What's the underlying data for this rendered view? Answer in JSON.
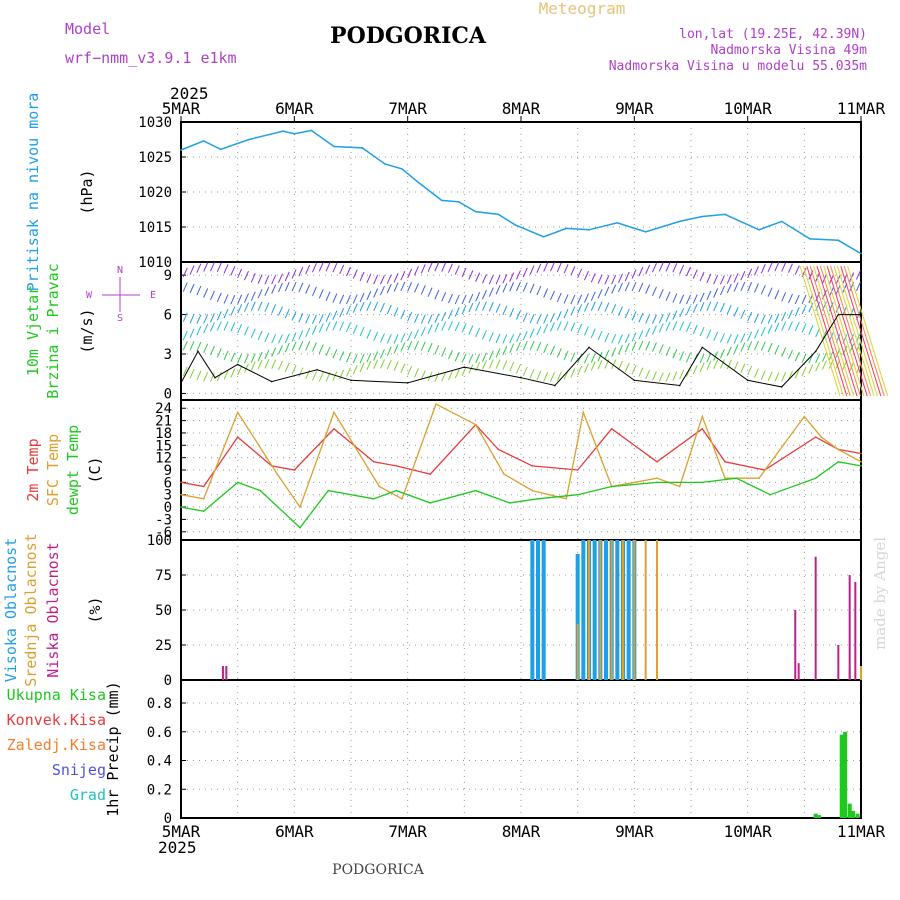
{
  "header": {
    "station": "PODGORICA",
    "meteogram": "Meteogram",
    "model_label": "Model",
    "model_name": "wrf−nmm_v3.9.1  e1km",
    "lonlat": "lon,lat (19.25E, 42.39N)",
    "elevation": "Nadmorska Visina 49m",
    "model_elevation": "Nadmorska Visina u modelu 55.035m",
    "year": "2025",
    "footer_station": "PODGORICA",
    "credit": "made by Angel"
  },
  "colors": {
    "pressure": "#1e9fe6",
    "temp2m": "#e83c3c",
    "sfc": "#dca030",
    "dewpt": "#1ec81e",
    "high_cloud": "#1e9fe6",
    "mid_cloud": "#dca030",
    "low_cloud": "#c01e8c",
    "precip": "#1ec81e",
    "purple": "#b040c8"
  },
  "chart_data": [
    {
      "type": "line",
      "panel": "pressure",
      "ylabel_lines": [
        "Pritisak na nivou mora",
        "(hPa)"
      ],
      "x_ticks": [
        "5MAR",
        "6MAR",
        "7MAR",
        "8MAR",
        "9MAR",
        "10MAR",
        "11MAR"
      ],
      "ylim": [
        1010,
        1030
      ],
      "y_ticks": [
        "1010",
        "1015",
        "1020",
        "1025",
        "1030"
      ],
      "grid": true,
      "series": [
        {
          "x": [
            0,
            0.2,
            0.35,
            0.6,
            0.9,
            1.0,
            1.15,
            1.35,
            1.6,
            1.8,
            1.95,
            2.1,
            2.3,
            2.45,
            2.6,
            2.8,
            2.95,
            3.2,
            3.4,
            3.6,
            3.85,
            4.1,
            4.4,
            4.6,
            4.8,
            5.1,
            5.3,
            5.55,
            5.8,
            6.0
          ],
          "y": [
            1026,
            1027.3,
            1026.1,
            1027.5,
            1028.7,
            1028.3,
            1028.8,
            1026.5,
            1026.3,
            1024,
            1023.3,
            1021.3,
            1018.8,
            1018.6,
            1017.2,
            1016.8,
            1015.3,
            1013.6,
            1014.8,
            1014.6,
            1015.6,
            1014.3,
            1015.8,
            1016.5,
            1016.8,
            1014.6,
            1015.8,
            1013.3,
            1013.1,
            1011.2
          ]
        }
      ]
    },
    {
      "type": "line",
      "panel": "wind",
      "ylabel_lines": [
        "10m Vjetar",
        "Brzina i Pravac",
        "(m/s)"
      ],
      "compass": {
        "n": "N",
        "s": "S",
        "e": "E",
        "w": "W"
      },
      "ylim": [
        -0.5,
        10
      ],
      "y_ticks": [
        "0",
        "3",
        "6",
        "9"
      ],
      "grid": true,
      "series": [
        {
          "name": "wind speed",
          "x": [
            0,
            0.15,
            0.3,
            0.5,
            0.8,
            1.2,
            1.5,
            2.0,
            2.5,
            3.0,
            3.3,
            3.6,
            4.0,
            4.4,
            4.6,
            5.0,
            5.3,
            5.6,
            5.8,
            6.0
          ],
          "y": [
            0.8,
            3.2,
            1.2,
            2.2,
            0.9,
            1.8,
            1.0,
            0.8,
            2.0,
            1.2,
            0.6,
            3.5,
            1.0,
            0.6,
            3.5,
            1.0,
            0.5,
            3.2,
            6.0,
            6.0
          ]
        }
      ]
    },
    {
      "type": "line",
      "panel": "temperature",
      "ylabel_lines": [
        "2m Temp",
        "SFC Temp",
        "dewpt Temp",
        "(C)"
      ],
      "ylim": [
        -8,
        26
      ],
      "y_ticks": [
        "-6",
        "-3",
        "0",
        "3",
        "6",
        "9",
        "12",
        "15",
        "18",
        "21",
        "24"
      ],
      "grid": true,
      "series": [
        {
          "name": "2m Temp",
          "x": [
            0,
            0.2,
            0.5,
            0.8,
            1.0,
            1.35,
            1.7,
            1.9,
            2.2,
            2.6,
            2.8,
            3.1,
            3.5,
            3.8,
            4.2,
            4.6,
            4.8,
            5.15,
            5.6,
            5.8,
            6.0
          ],
          "y": [
            6,
            5,
            17,
            10,
            9,
            19,
            11,
            10,
            8,
            20,
            14,
            10,
            9,
            19,
            11,
            19,
            11,
            9,
            17,
            14,
            13
          ]
        },
        {
          "name": "SFC Temp",
          "x": [
            0,
            0.2,
            0.5,
            0.85,
            1.05,
            1.35,
            1.75,
            1.95,
            2.25,
            2.6,
            2.85,
            3.1,
            3.4,
            3.55,
            3.8,
            4.2,
            4.4,
            4.6,
            4.8,
            5.1,
            5.5,
            5.65,
            5.8,
            6.0
          ],
          "y": [
            3,
            2,
            23,
            8,
            0,
            23,
            5,
            2,
            25,
            20,
            8,
            4,
            2,
            23,
            5,
            7,
            5,
            22,
            7,
            7,
            22,
            17,
            14,
            11
          ]
        },
        {
          "name": "dewpt Temp",
          "x": [
            0,
            0.2,
            0.5,
            0.7,
            1.05,
            1.3,
            1.7,
            1.9,
            2.2,
            2.6,
            2.9,
            3.15,
            3.5,
            3.8,
            4.2,
            4.6,
            4.9,
            5.2,
            5.6,
            5.8,
            6.0
          ],
          "y": [
            0,
            -1,
            6,
            4,
            -5,
            4,
            2,
            4,
            1,
            4,
            1,
            2,
            3,
            5,
            6,
            6,
            7,
            3,
            7,
            11,
            10
          ]
        }
      ]
    },
    {
      "type": "bar",
      "panel": "cloud cover",
      "ylabel_lines": [
        "Visoka Oblacnost",
        "Srednja Oblacnost",
        "Niska Oblacnost",
        "(%)"
      ],
      "ylim": [
        0,
        100
      ],
      "y_ticks": [
        "0",
        "25",
        "50",
        "75",
        "100"
      ],
      "grid": true,
      "series": [
        {
          "name": "Visoka Oblacnost",
          "x": [
            3.1,
            3.15,
            3.2,
            3.5,
            3.55,
            3.6,
            3.65,
            3.7,
            3.75,
            3.8,
            3.85,
            3.9,
            3.95,
            4.0
          ],
          "y": [
            100,
            100,
            100,
            90,
            100,
            100,
            100,
            100,
            100,
            100,
            100,
            100,
            100,
            100
          ]
        },
        {
          "name": "Srednja Oblacnost",
          "x": [
            3.5,
            3.6,
            3.7,
            3.8,
            3.9,
            4.0,
            4.1,
            4.2,
            5.9,
            6.0
          ],
          "y": [
            40,
            100,
            100,
            100,
            100,
            100,
            100,
            100,
            8,
            10
          ]
        },
        {
          "name": "Niska Oblacnost",
          "x": [
            0.37,
            0.4,
            5.42,
            5.45,
            5.6,
            5.8,
            5.9,
            5.95
          ],
          "y": [
            10,
            10,
            50,
            12,
            88,
            25,
            75,
            70
          ]
        }
      ]
    },
    {
      "type": "bar",
      "panel": "precipitation",
      "ylabel_lines": [
        "1hr Precip (mm)"
      ],
      "legend": [
        "Ukupna Kisa",
        "Konvek.Kisa",
        "Zaledj.Kisa",
        "Snijeg",
        "Grad"
      ],
      "ylim": [
        0,
        0.96
      ],
      "y_ticks": [
        "0",
        "0.2",
        "0.4",
        "0.6",
        "0.8"
      ],
      "grid": true,
      "series": [
        {
          "name": "Ukupna Kisa",
          "x": [
            5.6,
            5.63,
            5.83,
            5.86,
            5.9,
            5.93,
            5.97
          ],
          "y": [
            0.03,
            0.02,
            0.58,
            0.6,
            0.1,
            0.05,
            0.03
          ]
        }
      ]
    }
  ]
}
